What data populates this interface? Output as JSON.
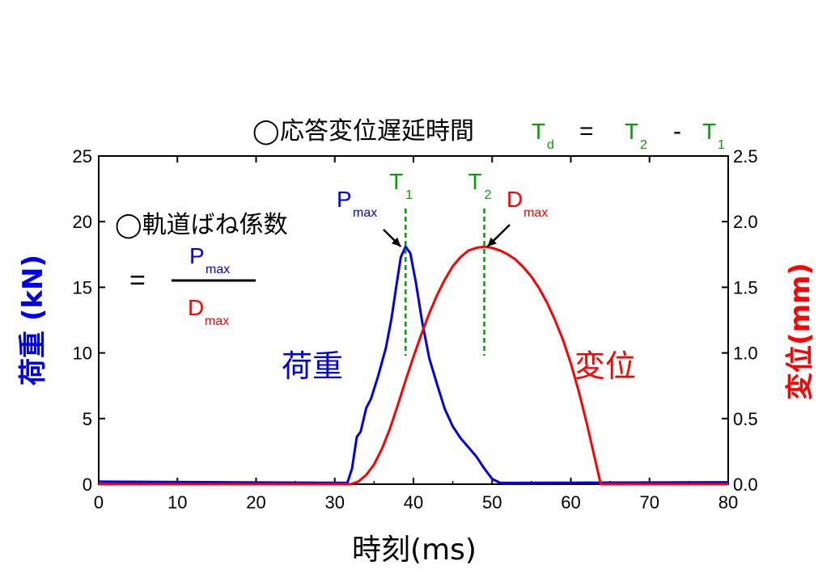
{
  "chart_data": {
    "type": "line",
    "title": {
      "circle": "◯",
      "text": "応答変位遅延時間",
      "lhs": "T",
      "lhs_sub": "d",
      "eq": "=",
      "t2": "T",
      "t2_sub": "2",
      "minus": "-",
      "t1": "T",
      "t1_sub": "1"
    },
    "xlabel": "時刻(ms)",
    "ylabel_left": "荷重 (kN)",
    "ylabel_right": "変位(mm)",
    "xlim": [
      0,
      80
    ],
    "ylim_left": [
      0,
      25
    ],
    "ylim_right": [
      0.0,
      2.5
    ],
    "x_ticks": [
      "0",
      "10",
      "20",
      "30",
      "40",
      "50",
      "60",
      "70",
      "80"
    ],
    "y_left_ticks": [
      "0",
      "5",
      "10",
      "15",
      "20",
      "25"
    ],
    "y_right_ticks": [
      "0.0",
      "0.5",
      "1.0",
      "1.5",
      "2.0",
      "2.5"
    ],
    "series": [
      {
        "name": "荷重",
        "axis": "left",
        "color": "#0000ee",
        "points": [
          [
            0,
            0.2
          ],
          [
            31.6,
            0.1
          ],
          [
            32.2,
            1.2
          ],
          [
            32.8,
            3.6
          ],
          [
            33.3,
            4.0
          ],
          [
            34,
            5.8
          ],
          [
            34.6,
            6.5
          ],
          [
            35.5,
            8.2
          ],
          [
            36.5,
            10.4
          ],
          [
            37.2,
            12.6
          ],
          [
            37.8,
            15.0
          ],
          [
            38.4,
            17.3
          ],
          [
            39.0,
            18.1
          ],
          [
            39.6,
            17.6
          ],
          [
            40.3,
            15.4
          ],
          [
            41.1,
            12.4
          ],
          [
            42.0,
            9.6
          ],
          [
            43.0,
            7.6
          ],
          [
            44.0,
            5.7
          ],
          [
            45.0,
            4.4
          ],
          [
            46.0,
            3.5
          ],
          [
            47.0,
            2.8
          ],
          [
            48.0,
            2.1
          ],
          [
            49.0,
            1.2
          ],
          [
            50.0,
            0.4
          ],
          [
            51.0,
            0.1
          ],
          [
            80,
            0.15
          ]
        ]
      },
      {
        "name": "変位",
        "axis": "right",
        "color": "#ff0000",
        "points": [
          [
            0,
            0.0
          ],
          [
            32,
            0.0
          ],
          [
            33,
            0.02
          ],
          [
            34,
            0.07
          ],
          [
            35,
            0.15
          ],
          [
            36,
            0.27
          ],
          [
            37,
            0.42
          ],
          [
            38,
            0.6
          ],
          [
            39,
            0.79
          ],
          [
            40,
            0.97
          ],
          [
            41,
            1.14
          ],
          [
            42,
            1.3
          ],
          [
            43,
            1.44
          ],
          [
            44,
            1.56
          ],
          [
            45,
            1.66
          ],
          [
            46,
            1.73
          ],
          [
            47,
            1.78
          ],
          [
            48,
            1.8
          ],
          [
            49,
            1.81
          ],
          [
            50,
            1.8
          ],
          [
            51,
            1.78
          ],
          [
            52,
            1.75
          ],
          [
            53,
            1.71
          ],
          [
            54,
            1.65
          ],
          [
            55,
            1.58
          ],
          [
            56,
            1.49
          ],
          [
            57,
            1.38
          ],
          [
            58,
            1.25
          ],
          [
            59,
            1.1
          ],
          [
            60,
            0.92
          ],
          [
            61,
            0.71
          ],
          [
            62,
            0.47
          ],
          [
            63,
            0.21
          ],
          [
            63.8,
            0.0
          ],
          [
            80,
            0.0
          ]
        ]
      }
    ],
    "markers": [
      {
        "label": "T",
        "sub": "1",
        "x": 39.0,
        "color": "#00a000"
      },
      {
        "label": "T",
        "sub": "2",
        "x": 49.0,
        "color": "#00a000"
      }
    ],
    "annotations": {
      "pmax": {
        "main": "P",
        "sub": "max",
        "color": "#0000ee",
        "target": [
          39.0,
          18.1
        ]
      },
      "dmax": {
        "main": "D",
        "sub": "max",
        "color": "#ff0000",
        "target": [
          49.0,
          1.81
        ]
      },
      "load_label": "荷重",
      "disp_label": "変位",
      "formula_title": "◯軌道ばね係数",
      "formula_eq": "=",
      "formula_num_main": "P",
      "formula_num_sub": "max",
      "formula_den_main": "D",
      "formula_den_sub": "max"
    },
    "colors": {
      "load": "#0000ee",
      "disp": "#ff0000",
      "marker": "#00a000",
      "axis": "#000000"
    }
  }
}
